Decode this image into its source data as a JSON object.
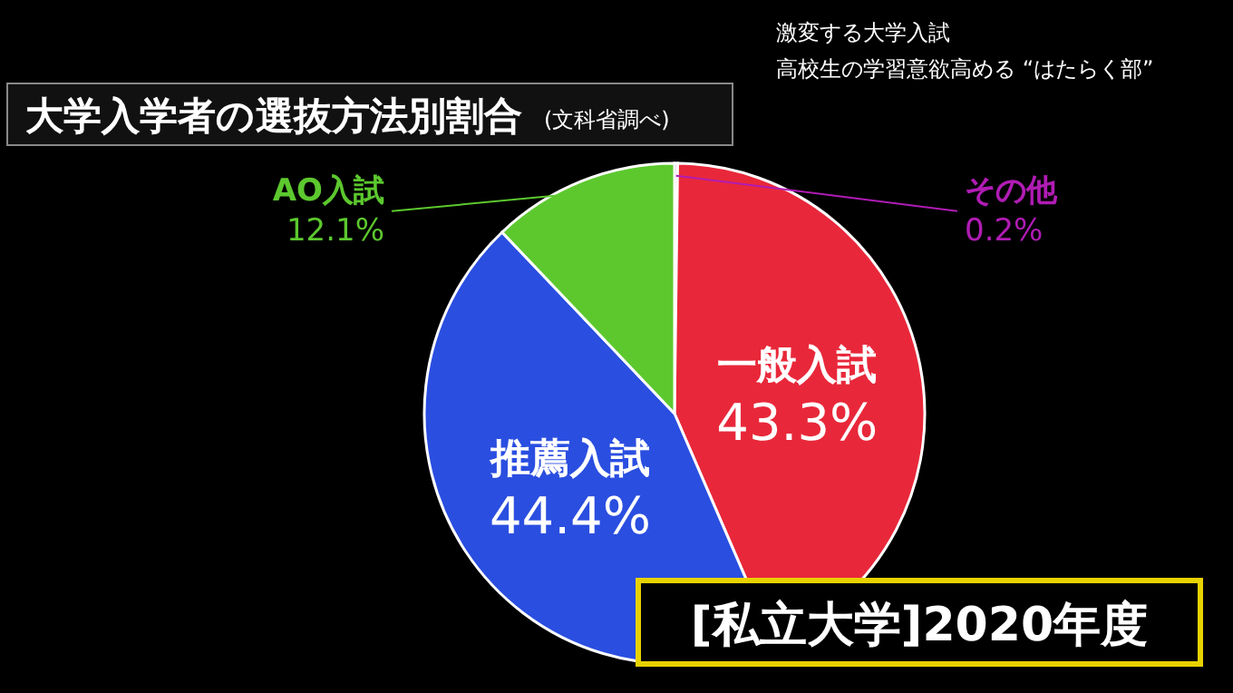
{
  "chart_data": {
    "type": "pie",
    "title": "大学入学者の選抜方法別割合",
    "subtitle": "(文科省調べ)",
    "categories": [
      "その他",
      "一般入試",
      "推薦入試",
      "AO入試"
    ],
    "values": [
      0.2,
      43.3,
      44.4,
      12.1
    ],
    "colors": [
      "#b01cb4",
      "#e8283a",
      "#2a4ee0",
      "#5cc82e"
    ],
    "value_labels": [
      "0.2%",
      "43.3%",
      "44.4%",
      "12.1%"
    ],
    "annotations": [
      "激変する大学入試",
      "高校生の学習意欲高める “はたらく部”",
      "[私立大学]2020年度"
    ]
  }
}
